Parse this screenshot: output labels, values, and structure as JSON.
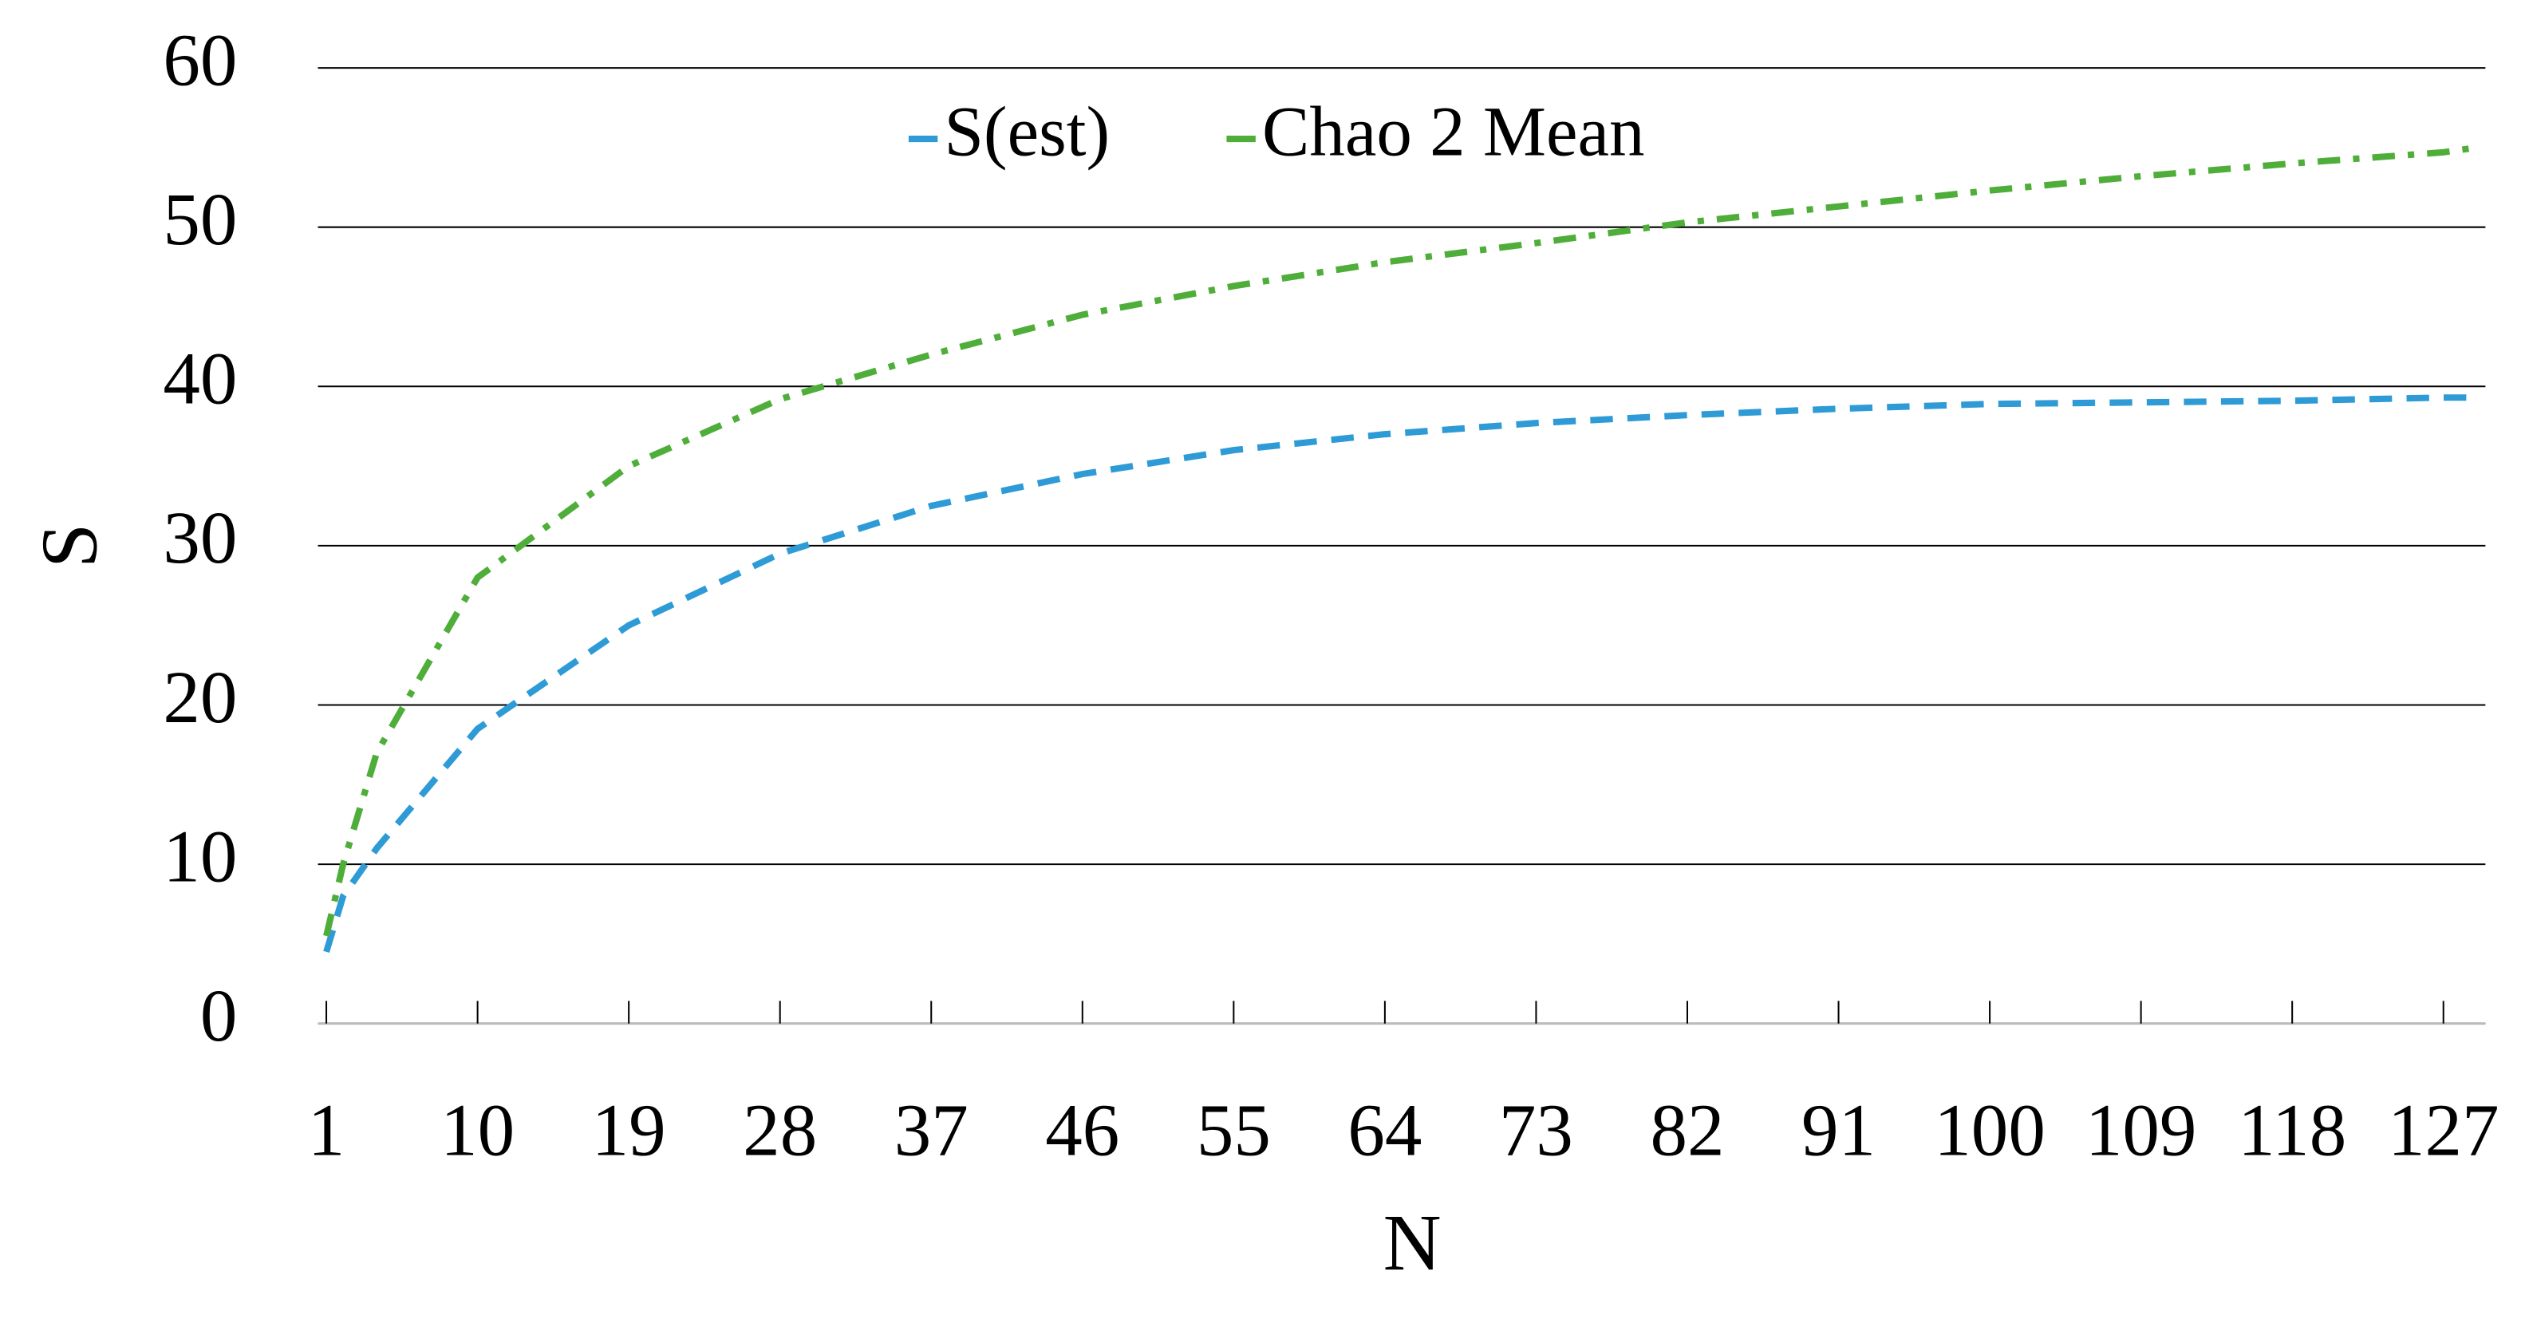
{
  "chart_data": {
    "type": "line",
    "x_label": "N",
    "y_label": "S",
    "x": [
      1,
      2,
      4,
      10,
      19,
      28,
      37,
      46,
      55,
      64,
      73,
      82,
      91,
      100,
      109,
      118,
      127,
      129
    ],
    "series": [
      {
        "name": "S(est)",
        "color": "#2e9bd6",
        "linestyle": "dashed",
        "values": [
          4.5,
          8,
          11,
          18.5,
          25,
          29.5,
          32.5,
          34.5,
          36,
          37,
          37.7,
          38.2,
          38.6,
          38.9,
          39,
          39.1,
          39.3,
          39.3
        ]
      },
      {
        "name": "Chao 2 Mean",
        "color": "#4fae3a",
        "linestyle": "dashdot",
        "values": [
          5.5,
          10,
          17,
          28,
          35,
          39.2,
          42,
          44.5,
          46.3,
          47.8,
          49,
          50.3,
          51.3,
          52.3,
          53.2,
          54,
          54.7,
          55
        ]
      }
    ],
    "xlim": [
      0.5,
      129.5
    ],
    "xticks": [
      1,
      10,
      19,
      28,
      37,
      46,
      55,
      64,
      73,
      82,
      91,
      100,
      109,
      118,
      127
    ],
    "ylim": [
      0,
      60
    ],
    "yticks": [
      0,
      10,
      20,
      30,
      40,
      50,
      60
    ],
    "grid": true,
    "legend": "top"
  }
}
